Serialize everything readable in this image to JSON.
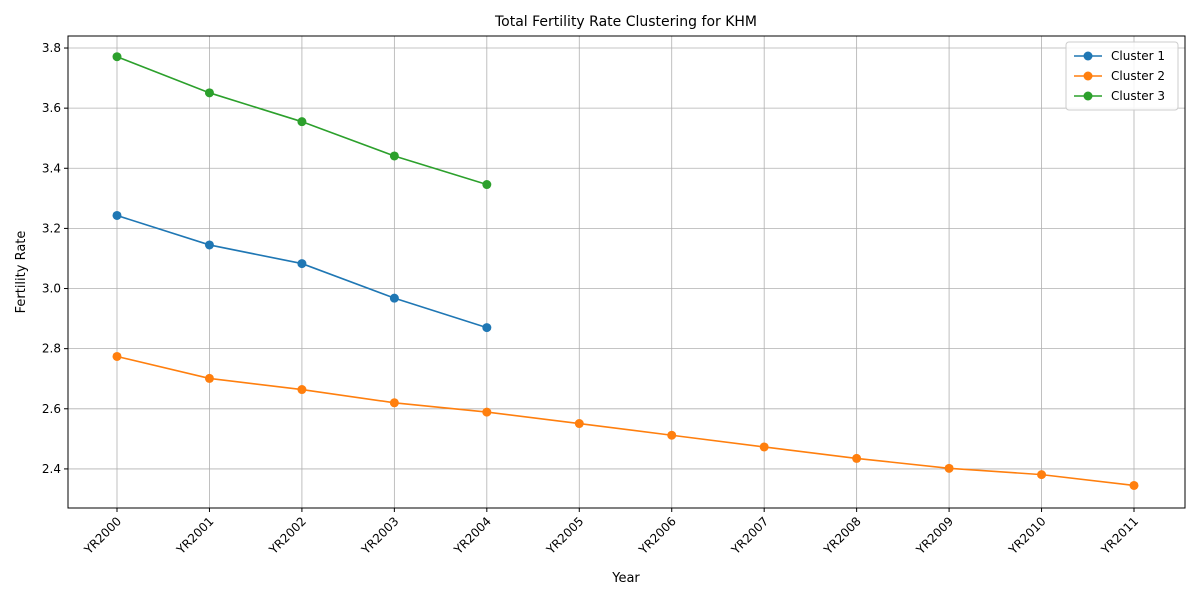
{
  "chart_data": {
    "type": "line",
    "title": "Total Fertility Rate Clustering for KHM",
    "xlabel": "Year",
    "ylabel": "Fertility Rate",
    "categories": [
      "YR2000",
      "YR2001",
      "YR2002",
      "YR2003",
      "YR2004",
      "YR2005",
      "YR2006",
      "YR2007",
      "YR2008",
      "YR2009",
      "YR2010",
      "YR2011"
    ],
    "ylim": [
      2.27,
      3.84
    ],
    "yticks": [
      2.4,
      2.6,
      2.8,
      3.0,
      3.2,
      3.4,
      3.6,
      3.8
    ],
    "ytick_labels": [
      "2.4",
      "2.6",
      "2.8",
      "3.0",
      "3.2",
      "3.4",
      "3.6",
      "3.8"
    ],
    "grid": true,
    "legend_position": "top-right",
    "series": [
      {
        "name": "Cluster 1",
        "color": "#1f77b4",
        "values": [
          3.243,
          3.145,
          3.083,
          2.968,
          2.87,
          null,
          null,
          null,
          null,
          null,
          null,
          null
        ]
      },
      {
        "name": "Cluster 2",
        "color": "#ff7f0e",
        "values": [
          2.774,
          2.701,
          2.664,
          2.62,
          2.589,
          2.551,
          2.512,
          2.473,
          2.435,
          2.402,
          2.381,
          2.345
        ]
      },
      {
        "name": "Cluster 3",
        "color": "#2ca02c",
        "values": [
          3.771,
          3.651,
          3.555,
          3.441,
          3.346,
          null,
          null,
          null,
          null,
          null,
          null,
          null
        ]
      }
    ]
  }
}
